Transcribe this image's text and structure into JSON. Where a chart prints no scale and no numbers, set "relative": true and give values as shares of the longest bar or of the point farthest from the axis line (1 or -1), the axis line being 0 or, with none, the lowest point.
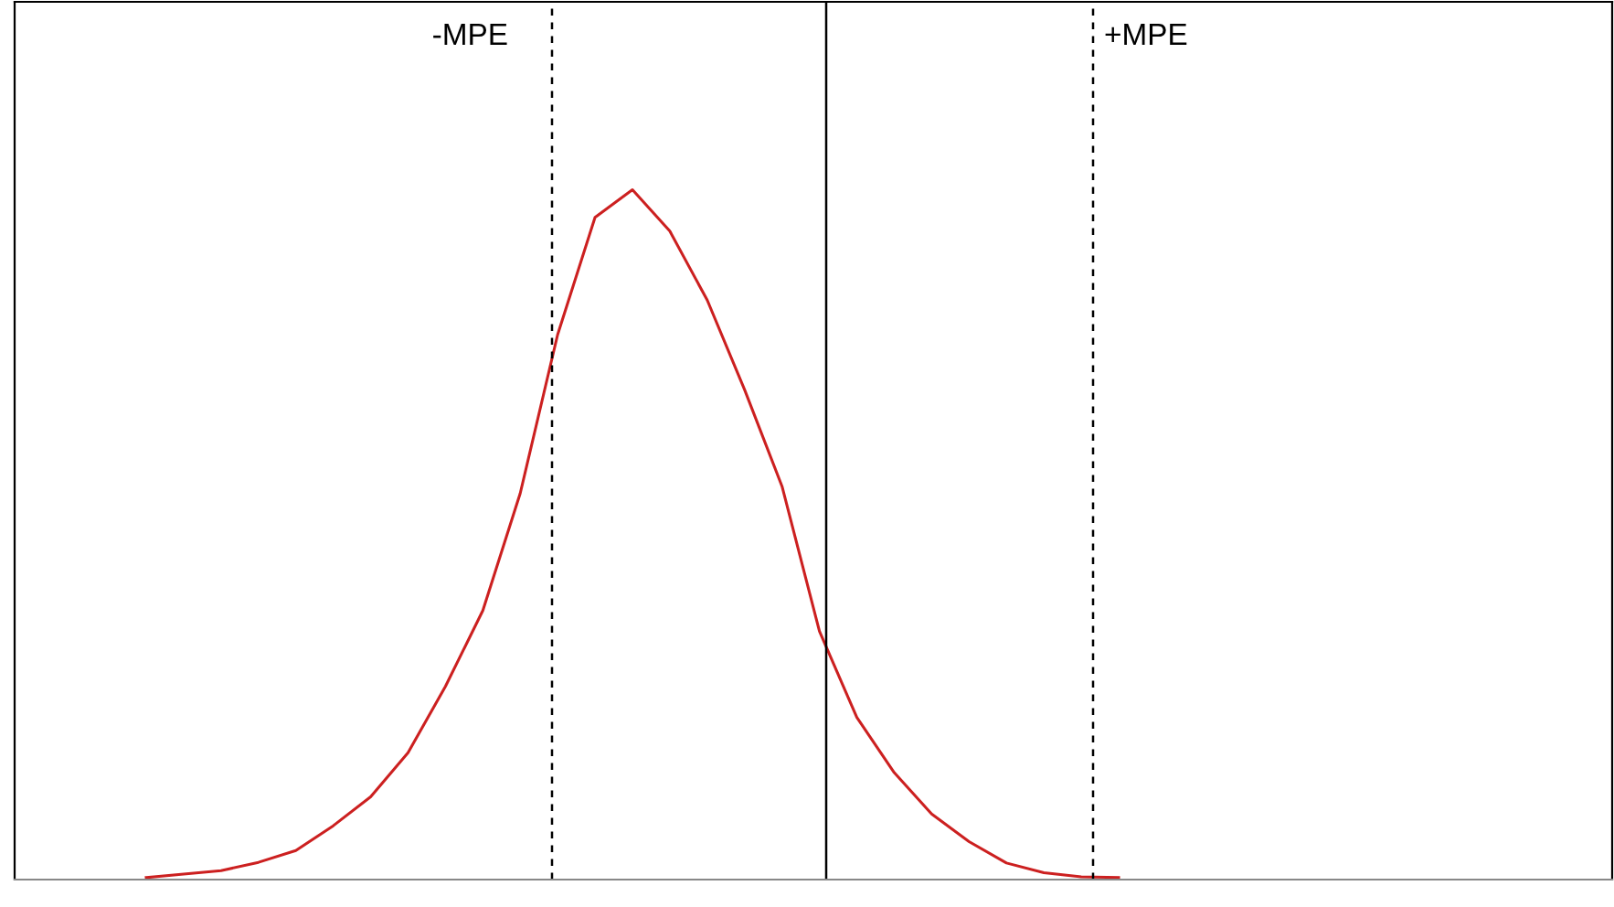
{
  "chart_data": {
    "type": "line",
    "relative": true,
    "legend": false,
    "marker": "none",
    "line_style": "solid",
    "categories": [
      null,
      null,
      null,
      null,
      null,
      null,
      null,
      null,
      null,
      null,
      null,
      null,
      null,
      null,
      null,
      null,
      null,
      null,
      null,
      null,
      null,
      null,
      null,
      null,
      null,
      null,
      null
    ],
    "series": [
      {
        "color": "#cc2020",
        "values": [
          0.003,
          0.008,
          0.013,
          0.025,
          0.042,
          0.078,
          0.12,
          0.184,
          0.28,
          0.39,
          0.56,
          0.79,
          0.96,
          1,
          0.94,
          0.84,
          0.71,
          0.57,
          0.36,
          0.235,
          0.155,
          0.095,
          0.055,
          0.024,
          0.01,
          0.004,
          0.003
        ]
      }
    ],
    "annotations": [
      "-MPE",
      "+MPE"
    ]
  }
}
